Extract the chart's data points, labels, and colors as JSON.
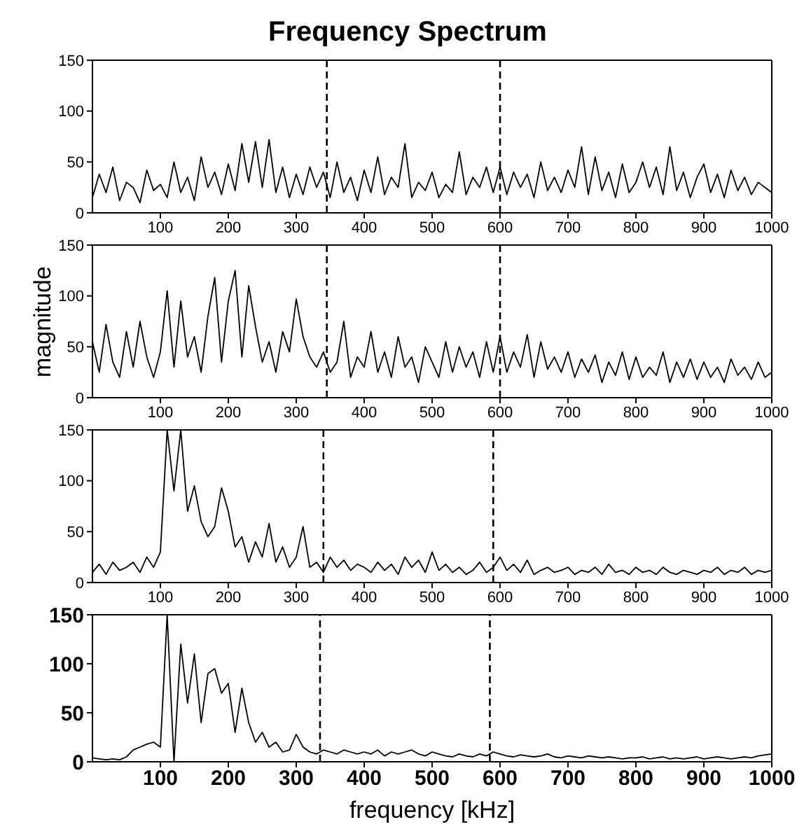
{
  "chart_data": [
    {
      "type": "line",
      "title": "Frequency Spectrum",
      "xlim": [
        0,
        1000
      ],
      "xticks": [
        100,
        200,
        300,
        400,
        500,
        600,
        700,
        800,
        900,
        1000
      ],
      "ylim": [
        0,
        150
      ],
      "yticks": [
        0,
        50,
        100,
        150
      ],
      "x": [
        0,
        10,
        20,
        30,
        40,
        50,
        60,
        70,
        80,
        90,
        100,
        110,
        120,
        130,
        140,
        150,
        160,
        170,
        180,
        190,
        200,
        210,
        220,
        230,
        240,
        250,
        260,
        270,
        280,
        290,
        300,
        310,
        320,
        330,
        340,
        350,
        360,
        370,
        380,
        390,
        400,
        410,
        420,
        430,
        440,
        450,
        460,
        470,
        480,
        490,
        500,
        510,
        520,
        530,
        540,
        550,
        560,
        570,
        580,
        590,
        600,
        610,
        620,
        630,
        640,
        650,
        660,
        670,
        680,
        690,
        700,
        710,
        720,
        730,
        740,
        750,
        760,
        770,
        780,
        790,
        800,
        810,
        820,
        830,
        840,
        850,
        860,
        870,
        880,
        890,
        900,
        910,
        920,
        930,
        940,
        950,
        960,
        970,
        980,
        990,
        1000
      ],
      "series": [
        {
          "color": "#000000",
          "values": [
            15,
            38,
            20,
            45,
            12,
            30,
            25,
            10,
            42,
            22,
            28,
            15,
            50,
            20,
            35,
            12,
            55,
            25,
            40,
            18,
            48,
            22,
            68,
            30,
            70,
            25,
            72,
            20,
            45,
            15,
            38,
            18,
            45,
            25,
            40,
            15,
            50,
            20,
            35,
            12,
            42,
            20,
            55,
            18,
            35,
            25,
            68,
            15,
            30,
            22,
            40,
            15,
            28,
            20,
            60,
            18,
            35,
            25,
            45,
            20,
            45,
            18,
            40,
            25,
            38,
            15,
            50,
            22,
            35,
            20,
            42,
            25,
            65,
            18,
            55,
            22,
            40,
            15,
            48,
            20,
            30,
            50,
            25,
            45,
            18,
            65,
            22,
            40,
            15,
            35,
            48,
            20,
            38,
            15,
            42,
            22,
            35,
            18,
            30,
            25,
            20
          ]
        }
      ],
      "ref_lines": [
        {
          "axis": "x",
          "value": 345,
          "color": "#000000",
          "line_style": "dashed"
        },
        {
          "axis": "x",
          "value": 600,
          "color": "#000000",
          "line_style": "dashed"
        }
      ]
    },
    {
      "type": "line",
      "ylabel": "magnitude",
      "xlim": [
        0,
        1000
      ],
      "xticks": [
        100,
        200,
        300,
        400,
        500,
        600,
        700,
        800,
        900,
        1000
      ],
      "ylim": [
        0,
        150
      ],
      "yticks": [
        0,
        50,
        100,
        150
      ],
      "x": [
        0,
        10,
        20,
        30,
        40,
        50,
        60,
        70,
        80,
        90,
        100,
        110,
        120,
        130,
        140,
        150,
        160,
        170,
        180,
        190,
        200,
        210,
        220,
        230,
        240,
        250,
        260,
        270,
        280,
        290,
        300,
        310,
        320,
        330,
        340,
        350,
        360,
        370,
        380,
        390,
        400,
        410,
        420,
        430,
        440,
        450,
        460,
        470,
        480,
        490,
        500,
        510,
        520,
        530,
        540,
        550,
        560,
        570,
        580,
        590,
        600,
        610,
        620,
        630,
        640,
        650,
        660,
        670,
        680,
        690,
        700,
        710,
        720,
        730,
        740,
        750,
        760,
        770,
        780,
        790,
        800,
        810,
        820,
        830,
        840,
        850,
        860,
        870,
        880,
        890,
        900,
        910,
        920,
        930,
        940,
        950,
        960,
        970,
        980,
        990,
        1000
      ],
      "series": [
        {
          "color": "#000000",
          "values": [
            55,
            25,
            72,
            35,
            20,
            65,
            30,
            75,
            40,
            20,
            45,
            105,
            30,
            95,
            40,
            60,
            25,
            80,
            118,
            35,
            95,
            125,
            40,
            110,
            70,
            35,
            55,
            25,
            65,
            45,
            97,
            60,
            40,
            30,
            45,
            25,
            35,
            75,
            20,
            40,
            30,
            65,
            25,
            45,
            20,
            60,
            30,
            40,
            15,
            50,
            35,
            20,
            55,
            25,
            50,
            30,
            45,
            20,
            55,
            25,
            60,
            25,
            45,
            30,
            62,
            20,
            55,
            28,
            40,
            25,
            45,
            20,
            38,
            25,
            42,
            15,
            35,
            22,
            45,
            18,
            40,
            20,
            30,
            22,
            45,
            15,
            35,
            20,
            38,
            18,
            35,
            20,
            30,
            15,
            38,
            22,
            30,
            18,
            35,
            20,
            25
          ]
        }
      ],
      "ref_lines": [
        {
          "axis": "x",
          "value": 345,
          "color": "#000000",
          "line_style": "dashed"
        },
        {
          "axis": "x",
          "value": 600,
          "color": "#000000",
          "line_style": "dashed"
        }
      ]
    },
    {
      "type": "line",
      "xlim": [
        0,
        1000
      ],
      "xticks": [
        100,
        200,
        300,
        400,
        500,
        600,
        700,
        800,
        900,
        1000
      ],
      "ylim": [
        0,
        150
      ],
      "yticks": [
        0,
        50,
        100,
        150
      ],
      "x": [
        0,
        10,
        20,
        30,
        40,
        50,
        60,
        70,
        80,
        90,
        100,
        110,
        120,
        130,
        140,
        150,
        160,
        170,
        180,
        190,
        200,
        210,
        220,
        230,
        240,
        250,
        260,
        270,
        280,
        290,
        300,
        310,
        320,
        330,
        340,
        350,
        360,
        370,
        380,
        390,
        400,
        410,
        420,
        430,
        440,
        450,
        460,
        470,
        480,
        490,
        500,
        510,
        520,
        530,
        540,
        550,
        560,
        570,
        580,
        590,
        600,
        610,
        620,
        630,
        640,
        650,
        660,
        670,
        680,
        690,
        700,
        710,
        720,
        730,
        740,
        750,
        760,
        770,
        780,
        790,
        800,
        810,
        820,
        830,
        840,
        850,
        860,
        870,
        880,
        890,
        900,
        910,
        920,
        930,
        940,
        950,
        960,
        970,
        980,
        990,
        1000
      ],
      "series": [
        {
          "color": "#000000",
          "values": [
            10,
            18,
            8,
            20,
            12,
            15,
            20,
            10,
            25,
            15,
            30,
            150,
            90,
            150,
            70,
            95,
            60,
            45,
            55,
            93,
            70,
            35,
            45,
            20,
            40,
            25,
            58,
            20,
            35,
            15,
            25,
            55,
            15,
            20,
            10,
            25,
            15,
            22,
            12,
            18,
            15,
            10,
            20,
            12,
            18,
            8,
            25,
            15,
            22,
            10,
            30,
            12,
            18,
            10,
            15,
            8,
            12,
            20,
            10,
            15,
            25,
            12,
            18,
            10,
            22,
            8,
            12,
            15,
            10,
            12,
            15,
            8,
            12,
            10,
            15,
            8,
            18,
            10,
            12,
            8,
            15,
            10,
            12,
            8,
            15,
            10,
            8,
            12,
            10,
            8,
            12,
            10,
            15,
            8,
            12,
            10,
            15,
            8,
            12,
            10,
            12
          ]
        }
      ],
      "ref_lines": [
        {
          "axis": "x",
          "value": 340,
          "color": "#000000",
          "line_style": "dashed"
        },
        {
          "axis": "x",
          "value": 590,
          "color": "#000000",
          "line_style": "dashed"
        }
      ]
    },
    {
      "type": "line",
      "xlabel": "frequency [kHz]",
      "xlim": [
        0,
        1000
      ],
      "xticks": [
        100,
        200,
        300,
        400,
        500,
        600,
        700,
        800,
        900,
        1000
      ],
      "ylim": [
        0,
        150
      ],
      "yticks": [
        0,
        50,
        100,
        150
      ],
      "x": [
        0,
        10,
        20,
        30,
        40,
        50,
        60,
        70,
        80,
        90,
        100,
        110,
        120,
        130,
        140,
        150,
        160,
        170,
        180,
        190,
        200,
        210,
        220,
        230,
        240,
        250,
        260,
        270,
        280,
        290,
        300,
        310,
        320,
        330,
        340,
        350,
        360,
        370,
        380,
        390,
        400,
        410,
        420,
        430,
        440,
        450,
        460,
        470,
        480,
        490,
        500,
        510,
        520,
        530,
        540,
        550,
        560,
        570,
        580,
        590,
        600,
        610,
        620,
        630,
        640,
        650,
        660,
        670,
        680,
        690,
        700,
        710,
        720,
        730,
        740,
        750,
        760,
        770,
        780,
        790,
        800,
        810,
        820,
        830,
        840,
        850,
        860,
        870,
        880,
        890,
        900,
        910,
        920,
        930,
        940,
        950,
        960,
        970,
        980,
        990,
        1000
      ],
      "series": [
        {
          "color": "#000000",
          "values": [
            4,
            3,
            2,
            3,
            2,
            5,
            12,
            15,
            18,
            20,
            15,
            150,
            0,
            120,
            60,
            110,
            40,
            90,
            95,
            70,
            80,
            30,
            75,
            40,
            20,
            30,
            15,
            20,
            10,
            12,
            28,
            15,
            10,
            8,
            12,
            10,
            8,
            12,
            10,
            8,
            10,
            8,
            12,
            6,
            10,
            8,
            10,
            12,
            8,
            6,
            10,
            8,
            6,
            5,
            8,
            6,
            5,
            8,
            6,
            10,
            8,
            6,
            5,
            7,
            6,
            5,
            6,
            8,
            5,
            4,
            6,
            5,
            4,
            6,
            5,
            4,
            5,
            4,
            3,
            4,
            4,
            5,
            3,
            4,
            5,
            3,
            4,
            3,
            4,
            5,
            3,
            4,
            5,
            4,
            3,
            4,
            5,
            4,
            6,
            7,
            8
          ]
        }
      ],
      "ref_lines": [
        {
          "axis": "x",
          "value": 335,
          "color": "#000000",
          "line_style": "dashed"
        },
        {
          "axis": "x",
          "value": 585,
          "color": "#000000",
          "line_style": "dashed"
        }
      ]
    }
  ]
}
